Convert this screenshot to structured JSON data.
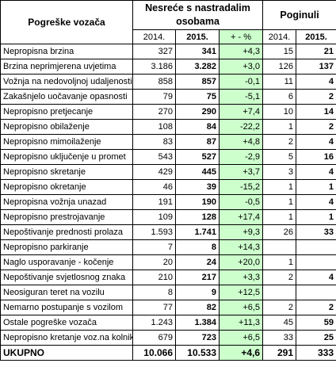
{
  "table": {
    "header": {
      "col1": "Pogreške vozača",
      "group1": "Nesreće s nastradalim osobama",
      "group2": "Poginuli",
      "sub": [
        "2014.",
        "2015.",
        "+ - %",
        "2014.",
        "2015."
      ]
    },
    "rows": [
      [
        "Nepropisna brzina",
        "327",
        "341",
        "+4,3",
        "15",
        "21"
      ],
      [
        "Brzina neprimjerena uvjetima",
        "3.186",
        "3.282",
        "+3,0",
        "126",
        "137"
      ],
      [
        "Vožnja na nedovoljnoj udaljenosti",
        "858",
        "857",
        "-0,1",
        "11",
        "4"
      ],
      [
        "Zakašnjelo uočavanje opasnosti",
        "79",
        "75",
        "-5,1",
        "6",
        "2"
      ],
      [
        "Nepropisno pretjecanje",
        "270",
        "290",
        "+7,4",
        "10",
        "14"
      ],
      [
        "Nepropisno obilaženje",
        "108",
        "84",
        "-22,2",
        "1",
        "2"
      ],
      [
        "Nepropisno mimoilaženje",
        "83",
        "87",
        "+4,8",
        "2",
        "4"
      ],
      [
        "Nepropisno uključenje u promet",
        "543",
        "527",
        "-2,9",
        "5",
        "16"
      ],
      [
        "Nepropisno skretanje",
        "429",
        "445",
        "+3,7",
        "3",
        "4"
      ],
      [
        "Nepropisno okretanje",
        "46",
        "39",
        "-15,2",
        "1",
        "1"
      ],
      [
        "Nepropisna vožnja unazad",
        "191",
        "190",
        "-0,5",
        "1",
        "4"
      ],
      [
        "Nepropisno prestrojavanje",
        "109",
        "128",
        "+17,4",
        "1",
        "1"
      ],
      [
        "Nepoštivanje prednosti prolaza",
        "1.593",
        "1.741",
        "+9,3",
        "26",
        "33"
      ],
      [
        "Nepropisno parkiranje",
        "7",
        "8",
        "+14,3",
        null,
        null
      ],
      [
        "Naglo usporavanje - kočenje",
        "20",
        "24",
        "+20,0",
        "1",
        null
      ],
      [
        "Nepoštivanje svjetlosnog znaka",
        "210",
        "217",
        "+3,3",
        "2",
        "4"
      ],
      [
        "Neosiguran teret na vozilu",
        "8",
        "9",
        "+12,5",
        null,
        null
      ],
      [
        "Nemarno postupanje s vozilom",
        "77",
        "82",
        "+6,5",
        "2",
        "2"
      ],
      [
        "Ostale pogreške vozača",
        "1.243",
        "1.384",
        "+11,3",
        "45",
        "59"
      ],
      [
        "Nepropisno kretanje voz.na kolniku",
        "679",
        "723",
        "+6,5",
        "33",
        "25"
      ]
    ],
    "total": [
      "UKUPNO",
      "10.066",
      "10.533",
      "+4,6",
      "291",
      "333"
    ]
  }
}
